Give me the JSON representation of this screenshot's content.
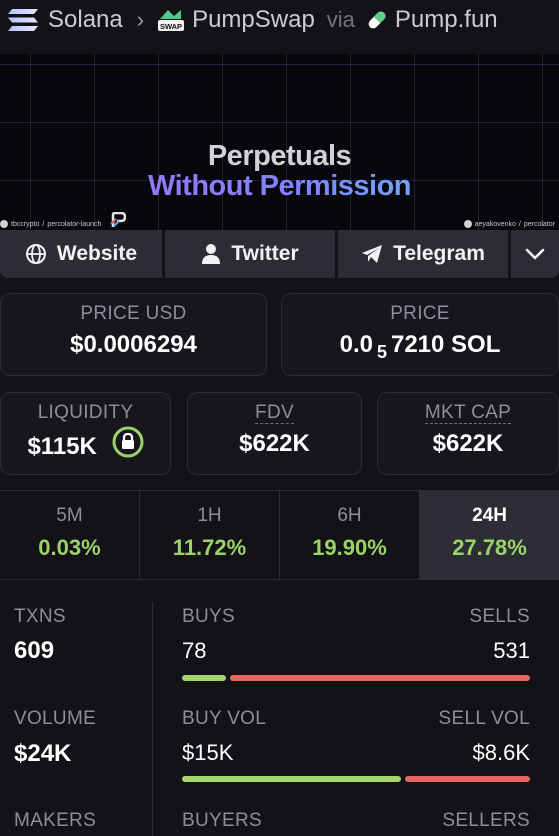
{
  "breadcrumb": {
    "chain": "Solana",
    "dex": "PumpSwap",
    "dex_badge": "SWAP",
    "via": "via",
    "launchpad": "Pump.fun"
  },
  "banner": {
    "line1": "Perpetuals",
    "line2": "Without Permission",
    "footer_left_handle": "tbccrypto",
    "footer_left_repo": "percolator-launch",
    "footer_right_handle": "aeyakovenko",
    "footer_right_repo": "percolator"
  },
  "socials": {
    "website": "Website",
    "twitter": "Twitter",
    "telegram": "Telegram"
  },
  "price": {
    "usd_label": "PRICE USD",
    "usd_value": "$0.0006294",
    "native_label": "PRICE",
    "native_prefix": "0.0",
    "native_zeros": "5",
    "native_digits": "7210 SOL"
  },
  "metrics": {
    "liquidity_label": "LIQUIDITY",
    "liquidity_value": "$115K",
    "fdv_label": "FDV",
    "fdv_value": "$622K",
    "mcap_label": "MKT CAP",
    "mcap_value": "$622K"
  },
  "timeframes": [
    {
      "label": "5M",
      "value": "0.03%"
    },
    {
      "label": "1H",
      "value": "11.72%"
    },
    {
      "label": "6H",
      "value": "19.90%"
    },
    {
      "label": "24H",
      "value": "27.78%",
      "active": true
    }
  ],
  "stats": {
    "txns_label": "TXNS",
    "txns_value": "609",
    "buys_label": "BUYS",
    "buys_value": "78",
    "sells_label": "SELLS",
    "sells_value": "531",
    "buys_share": 0.128,
    "volume_label": "VOLUME",
    "volume_value": "$24K",
    "buy_vol_label": "BUY VOL",
    "buy_vol_value": "$15K",
    "sell_vol_label": "SELL VOL",
    "sell_vol_value": "$8.6K",
    "buy_vol_share": 0.636,
    "makers_label": "MAKERS",
    "buyers_label": "BUYERS",
    "sellers_label": "SELLERS"
  },
  "colors": {
    "positive": "#9bd36a",
    "buy_bar": "#a6d56b",
    "sell_bar": "#e56760",
    "background": "#121217"
  }
}
